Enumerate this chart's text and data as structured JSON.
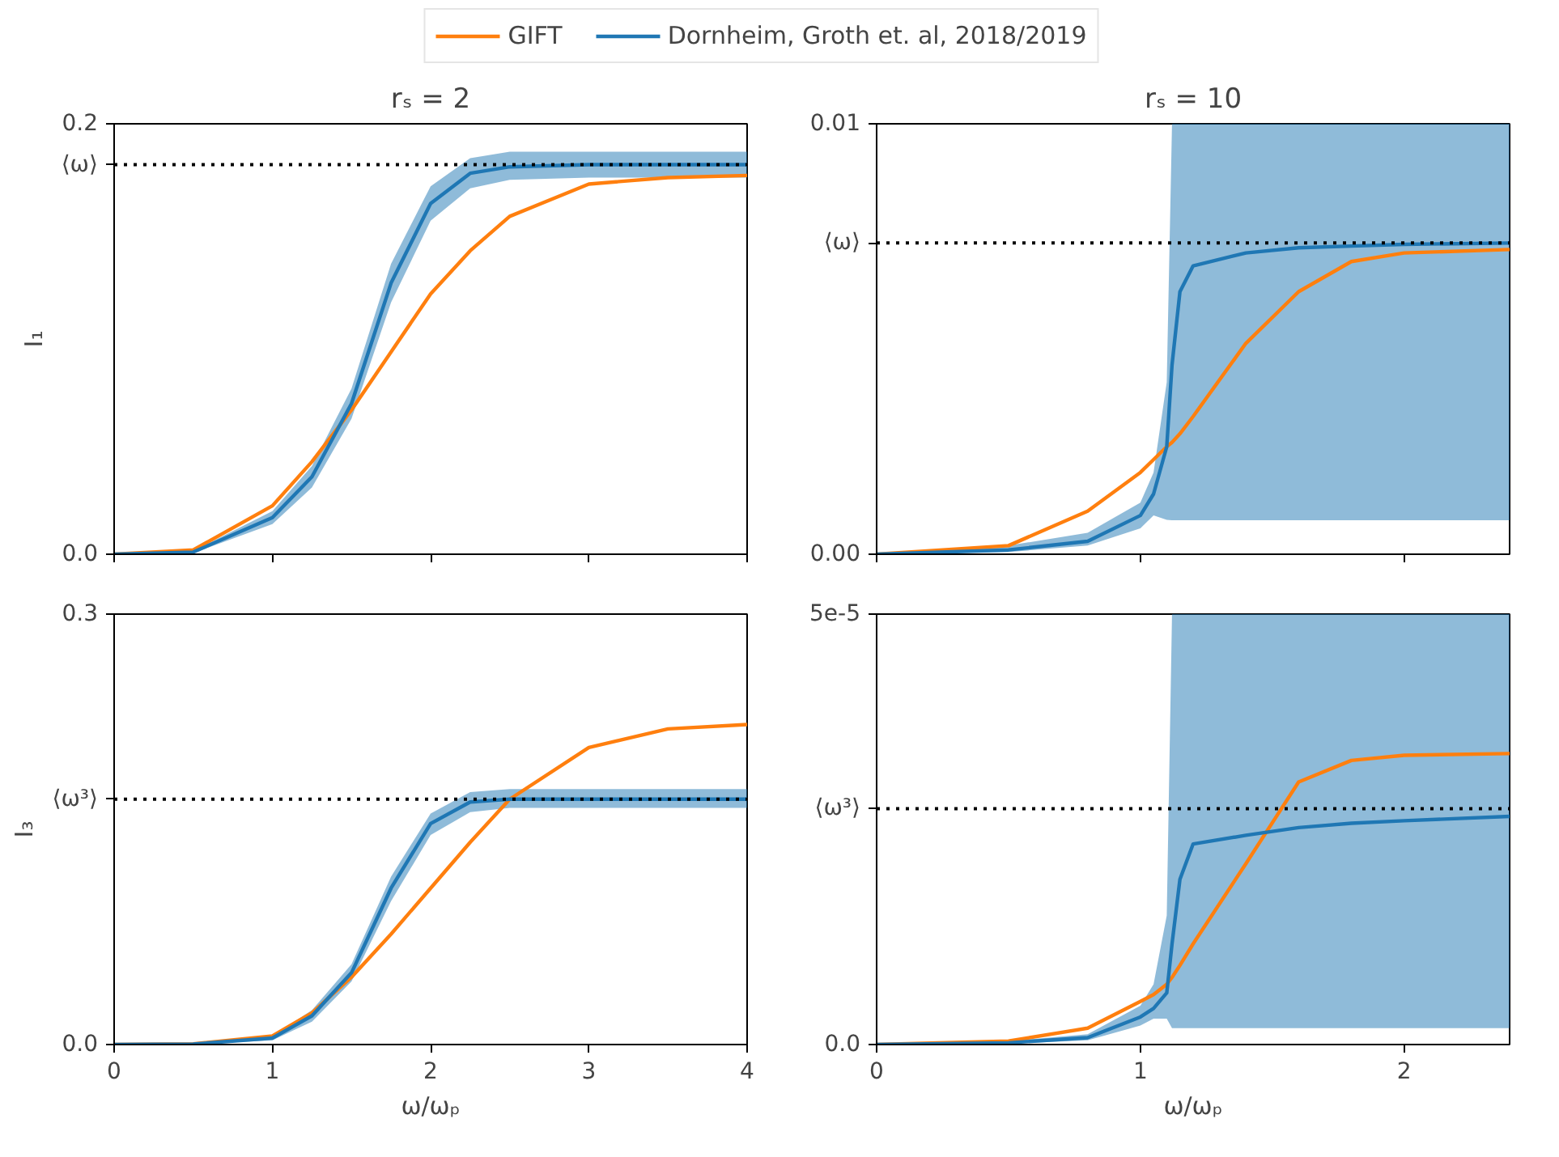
{
  "chart_data": [
    {
      "type": "line",
      "title": "rₛ = 2",
      "ylabel": "I₁",
      "legend": "top",
      "tick_labels": "y",
      "grid": false,
      "xlim": [
        0,
        4
      ],
      "xticks": [
        0,
        1,
        2,
        3,
        4
      ],
      "ylim": [
        0,
        0.2
      ],
      "yticks": [
        {
          "value": 0,
          "label": "0.0"
        },
        {
          "value": 0.181,
          "label": "⟨ω⟩"
        },
        0.2
      ],
      "x": [
        0,
        0.5,
        1,
        1.25,
        1.5,
        1.75,
        2,
        2.25,
        2.5,
        3,
        3.5,
        4
      ],
      "series": [
        {
          "name": "GIFT",
          "color": "#ff7f0e",
          "values": [
            0,
            0.002,
            0.0225,
            0.043,
            0.067,
            0.094,
            0.121,
            0.141,
            0.157,
            0.172,
            0.175,
            0.176
          ]
        },
        {
          "name": "Dornheim, Groth et. al, 2018/2019",
          "color": "#1f77b4",
          "values": [
            0,
            0.001,
            0.017,
            0.036,
            0.07,
            0.126,
            0.163,
            0.177,
            0.18,
            0.181,
            0.181,
            0.181
          ],
          "lower": [
            0,
            0.0005,
            0.014,
            0.031,
            0.063,
            0.117,
            0.155,
            0.17,
            0.174,
            0.175,
            0.175,
            0.175
          ],
          "upper": [
            0,
            0.0015,
            0.02,
            0.041,
            0.077,
            0.135,
            0.171,
            0.184,
            0.187,
            0.187,
            0.187,
            0.187
          ]
        }
      ],
      "ref_lines": [
        {
          "axis": "y",
          "value": 0.181,
          "color": "#000000",
          "line_style": "dotted"
        }
      ]
    },
    {
      "type": "line",
      "title": "rₛ = 10",
      "tick_labels": "y",
      "grid": false,
      "xlim": [
        0,
        2.4
      ],
      "xticks": [
        0,
        1,
        2
      ],
      "ylim": [
        0,
        0.01
      ],
      "yticks": [
        {
          "value": 0,
          "label": "0.00"
        },
        {
          "value": 0.00723,
          "label": "⟨ω⟩"
        },
        0.01
      ],
      "x": [
        0,
        0.5,
        0.8,
        1.0,
        1.05,
        1.1,
        1.12,
        1.15,
        1.2,
        1.4,
        1.6,
        1.8,
        2.0,
        2.4
      ],
      "series": [
        {
          "color": "#ff7f0e",
          "values": [
            0,
            0.0002,
            0.001,
            0.0019,
            0.0022,
            0.0025,
            0.0026,
            0.0028,
            0.0032,
            0.0049,
            0.0061,
            0.0068,
            0.007,
            0.00708
          ]
        },
        {
          "color": "#1f77b4",
          "values": [
            0,
            0.0001,
            0.0003,
            0.0009,
            0.0014,
            0.0025,
            0.0044,
            0.0061,
            0.0067,
            0.007,
            0.00712,
            0.00716,
            0.0072,
            0.00723
          ],
          "lower": [
            0,
            5e-05,
            0.0002,
            0.0006,
            0.0009,
            0.0008,
            0.00079,
            0.00079,
            0.00079,
            0.00079,
            0.00079,
            0.00079,
            0.00079,
            0.00079
          ],
          "upper": [
            0,
            0.0002,
            0.0005,
            0.0012,
            0.0019,
            0.004,
            0.01,
            0.01,
            0.01,
            0.01,
            0.01,
            0.01,
            0.01,
            0.01
          ]
        }
      ],
      "ref_lines": [
        {
          "axis": "y",
          "value": 0.00723,
          "color": "#000000",
          "line_style": "dotted"
        }
      ]
    },
    {
      "type": "line",
      "ylabel": "I₃",
      "xlabel": "ω/ωₚ",
      "grid": false,
      "xlim": [
        0,
        4
      ],
      "xticks": [
        0,
        1,
        2,
        3,
        4
      ],
      "ylim": [
        0,
        0.3
      ],
      "yticks": [
        {
          "value": 0,
          "label": "0.0"
        },
        {
          "value": 0.171,
          "label": "⟨ω³⟩"
        },
        0.3
      ],
      "x": [
        0,
        0.5,
        1,
        1.25,
        1.5,
        1.75,
        2,
        2.25,
        2.5,
        3,
        3.5,
        4
      ],
      "series": [
        {
          "color": "#ff7f0e",
          "values": [
            0,
            0.0005,
            0.006,
            0.022,
            0.047,
            0.077,
            0.109,
            0.141,
            0.171,
            0.207,
            0.22,
            0.223
          ]
        },
        {
          "color": "#1f77b4",
          "values": [
            0,
            0.0003,
            0.0045,
            0.02,
            0.05,
            0.109,
            0.154,
            0.169,
            0.171,
            0.171,
            0.171,
            0.171
          ],
          "lower": [
            0,
            0.0001,
            0.003,
            0.016,
            0.044,
            0.1,
            0.146,
            0.162,
            0.165,
            0.165,
            0.165,
            0.165
          ],
          "upper": [
            0,
            0.0005,
            0.006,
            0.024,
            0.056,
            0.117,
            0.161,
            0.176,
            0.178,
            0.178,
            0.178,
            0.178
          ]
        }
      ],
      "ref_lines": [
        {
          "axis": "y",
          "value": 0.171,
          "color": "#000000",
          "line_style": "dotted"
        }
      ]
    },
    {
      "type": "line",
      "xlabel": "ω/ωₚ",
      "grid": false,
      "xlim": [
        0,
        2.4
      ],
      "xticks": [
        0,
        1,
        2
      ],
      "ylim": [
        0,
        5e-05
      ],
      "yticks": [
        {
          "value": 0,
          "label": "0.0"
        },
        {
          "value": 2.74e-05,
          "label": "⟨ω³⟩"
        },
        {
          "value": 5e-05,
          "label": "5e-5"
        }
      ],
      "x": [
        0,
        0.5,
        0.8,
        1.0,
        1.05,
        1.1,
        1.12,
        1.15,
        1.2,
        1.4,
        1.6,
        1.8,
        2.0,
        2.4
      ],
      "series": [
        {
          "color": "#ff7f0e",
          "values": [
            0,
            4e-07,
            1.9e-06,
            5e-06,
            5.8e-06,
            7e-06,
            7.8e-06,
            9.2e-06,
            1.17e-05,
            2.1e-05,
            3.05e-05,
            3.3e-05,
            3.36e-05,
            3.38e-05
          ]
        },
        {
          "color": "#1f77b4",
          "values": [
            0,
            2e-07,
            8e-07,
            3.2e-06,
            4.2e-06,
            6e-06,
            1.17e-05,
            1.92e-05,
            2.33e-05,
            2.43e-05,
            2.52e-05,
            2.57e-05,
            2.6e-05,
            2.65e-05
          ],
          "lower": [
            0,
            1e-07,
            5e-07,
            2.2e-06,
            3e-06,
            3e-06,
            1.9e-06,
            1.9e-06,
            1.9e-06,
            1.9e-06,
            1.9e-06,
            1.9e-06,
            1.9e-06,
            1.9e-06
          ],
          "upper": [
            0,
            4e-07,
            1.2e-06,
            4.5e-06,
            7e-06,
            1.5e-05,
            5e-05,
            5e-05,
            5e-05,
            5e-05,
            5e-05,
            5e-05,
            5e-05,
            5e-05
          ]
        }
      ],
      "ref_lines": [
        {
          "axis": "y",
          "value": 2.74e-05,
          "color": "#000000",
          "line_style": "dotted"
        }
      ]
    }
  ]
}
